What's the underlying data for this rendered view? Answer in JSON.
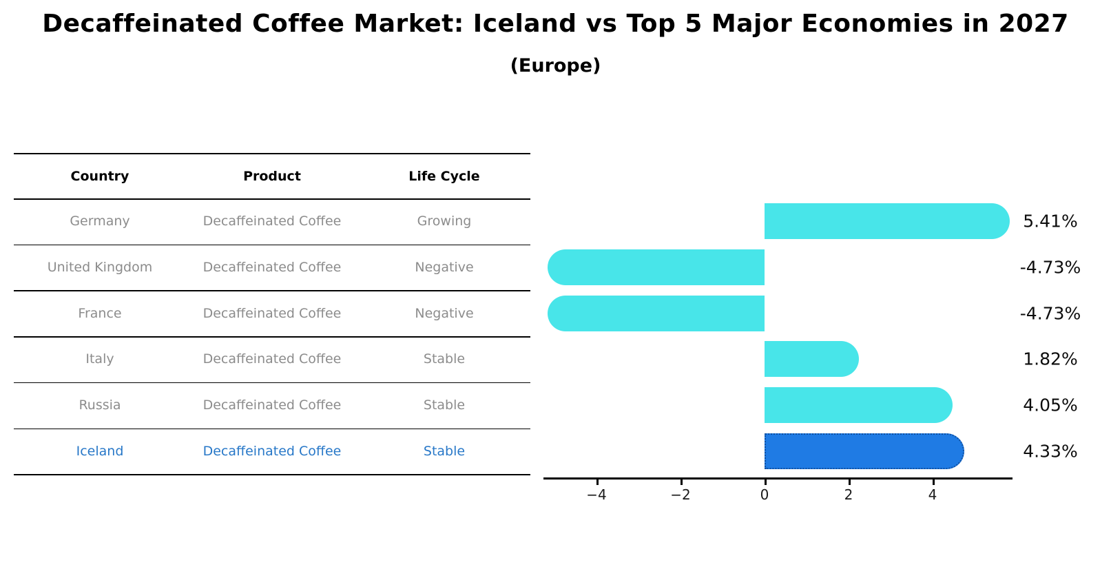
{
  "title": "Decaffeinated Coffee Market: Iceland vs Top 5 Major Economies in 2027",
  "subtitle": "(Europe)",
  "table": {
    "headers": [
      "Country",
      "Product",
      "Life Cycle"
    ],
    "rows": [
      {
        "country": "Germany",
        "product": "Decaffeinated Coffee",
        "life_cycle": "Growing",
        "highlighted": false
      },
      {
        "country": "United Kingdom",
        "product": "Decaffeinated Coffee",
        "life_cycle": "Negative",
        "highlighted": false
      },
      {
        "country": "France",
        "product": "Decaffeinated Coffee",
        "life_cycle": "Negative",
        "highlighted": false
      },
      {
        "country": "Italy",
        "product": "Decaffeinated Coffee",
        "life_cycle": "Stable",
        "highlighted": false
      },
      {
        "country": "Russia",
        "product": "Decaffeinated Coffee",
        "life_cycle": "Stable",
        "highlighted": false
      },
      {
        "country": "Iceland",
        "product": "Decaffeinated Coffee",
        "life_cycle": "Stable",
        "highlighted": true
      }
    ]
  },
  "chart_data": {
    "type": "bar",
    "orientation": "horizontal",
    "categories": [
      "Germany",
      "United Kingdom",
      "France",
      "Italy",
      "Russia",
      "Iceland"
    ],
    "values": [
      5.41,
      -4.73,
      -4.73,
      1.82,
      4.05,
      4.33
    ],
    "value_labels": [
      "5.41%",
      "-4.73%",
      "-4.73%",
      "1.82%",
      "4.05%",
      "4.33%"
    ],
    "xticks": [
      -4,
      -2,
      0,
      2,
      4
    ],
    "xtick_labels": [
      "−4",
      "−2",
      "0",
      "2",
      "4"
    ],
    "xlim": [
      -5.3,
      5.9
    ],
    "highlight_index": 5,
    "grid": false,
    "legend": null,
    "title": "Decaffeinated Coffee Market: Iceland vs Top 5 Major Economies in 2027 (Europe)"
  },
  "colors": {
    "bar": "#48E5E9",
    "highlight_bar": "#1F7BE4",
    "highlight_border": "#1050A0",
    "highlight_text": "#2878C8",
    "table_text": "#8C8C8C",
    "text": "#000000"
  }
}
